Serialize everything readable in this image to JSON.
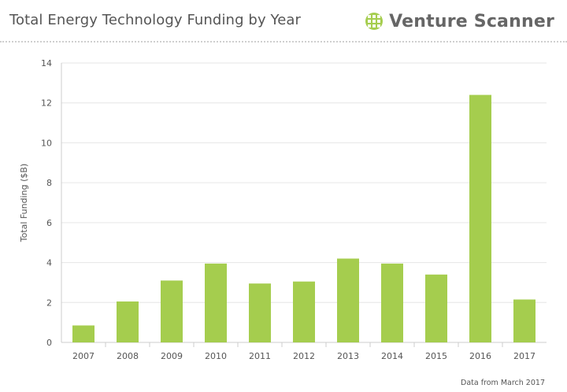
{
  "header": {
    "title": "Total Energy Technology Funding by Year",
    "brand_name": "Venture Scanner",
    "brand_icon": "venture-scanner-logo-icon"
  },
  "footer": {
    "note": "Data from March 2017"
  },
  "colors": {
    "bar": "#a5cd4e",
    "grid": "#e6e6e6",
    "axis": "#cccccc",
    "brand_green": "#a5cd4e"
  },
  "chart_data": {
    "type": "bar",
    "title": "Total Energy Technology Funding by Year",
    "xlabel": "",
    "ylabel": "Total Funding ($B)",
    "categories": [
      "2007",
      "2008",
      "2009",
      "2010",
      "2011",
      "2012",
      "2013",
      "2014",
      "2015",
      "2016",
      "2017"
    ],
    "values": [
      0.85,
      2.05,
      3.1,
      3.95,
      2.95,
      3.05,
      4.2,
      3.95,
      3.4,
      12.4,
      2.15
    ],
    "ylim": [
      0,
      14
    ],
    "yticks": [
      0,
      2,
      4,
      6,
      8,
      10,
      12,
      14
    ],
    "grid": true,
    "legend": "none"
  }
}
